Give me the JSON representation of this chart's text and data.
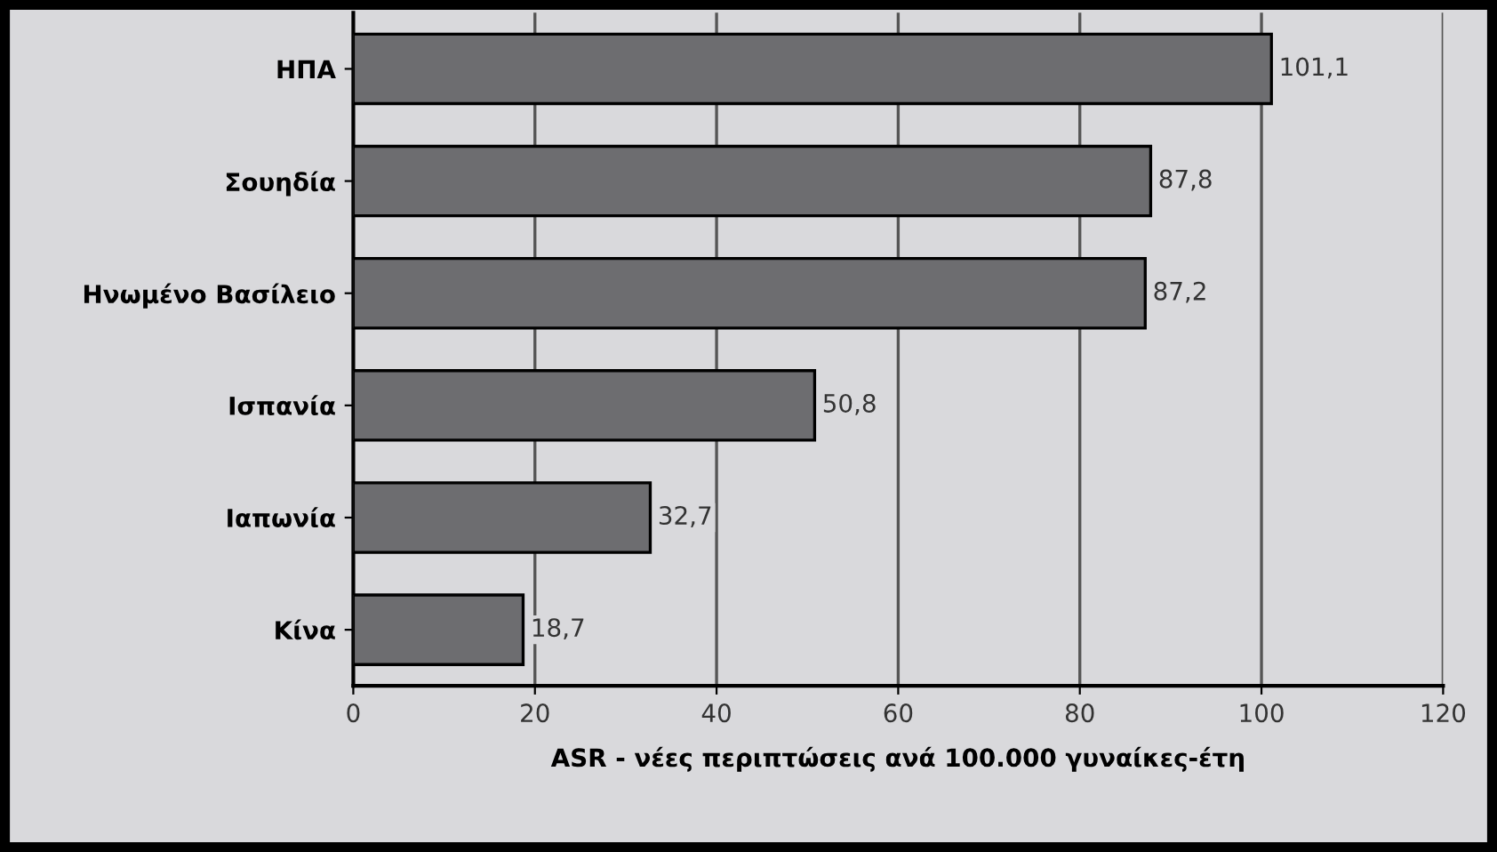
{
  "chart_data": {
    "type": "bar",
    "orientation": "horizontal",
    "categories": [
      "ΗΠΑ",
      "Σουηδία",
      "Ηνωμένο Βασίλειο",
      "Ισπανία",
      "Ιαπωνία",
      "Κίνα"
    ],
    "values": [
      101.1,
      87.8,
      87.2,
      50.8,
      32.7,
      18.7
    ],
    "value_labels": [
      "101,1",
      "87,8",
      "87,2",
      "50,8",
      "32,7",
      "18,7"
    ],
    "color": "#6d6d70",
    "xlabel": "ASR - νέες περιπτώσεις ανά 100.000 γυναίκες-έτη",
    "xlim": [
      0,
      120
    ],
    "xticks": [
      0,
      20,
      40,
      60,
      80,
      100,
      120
    ],
    "grid": "x",
    "legend": false
  }
}
